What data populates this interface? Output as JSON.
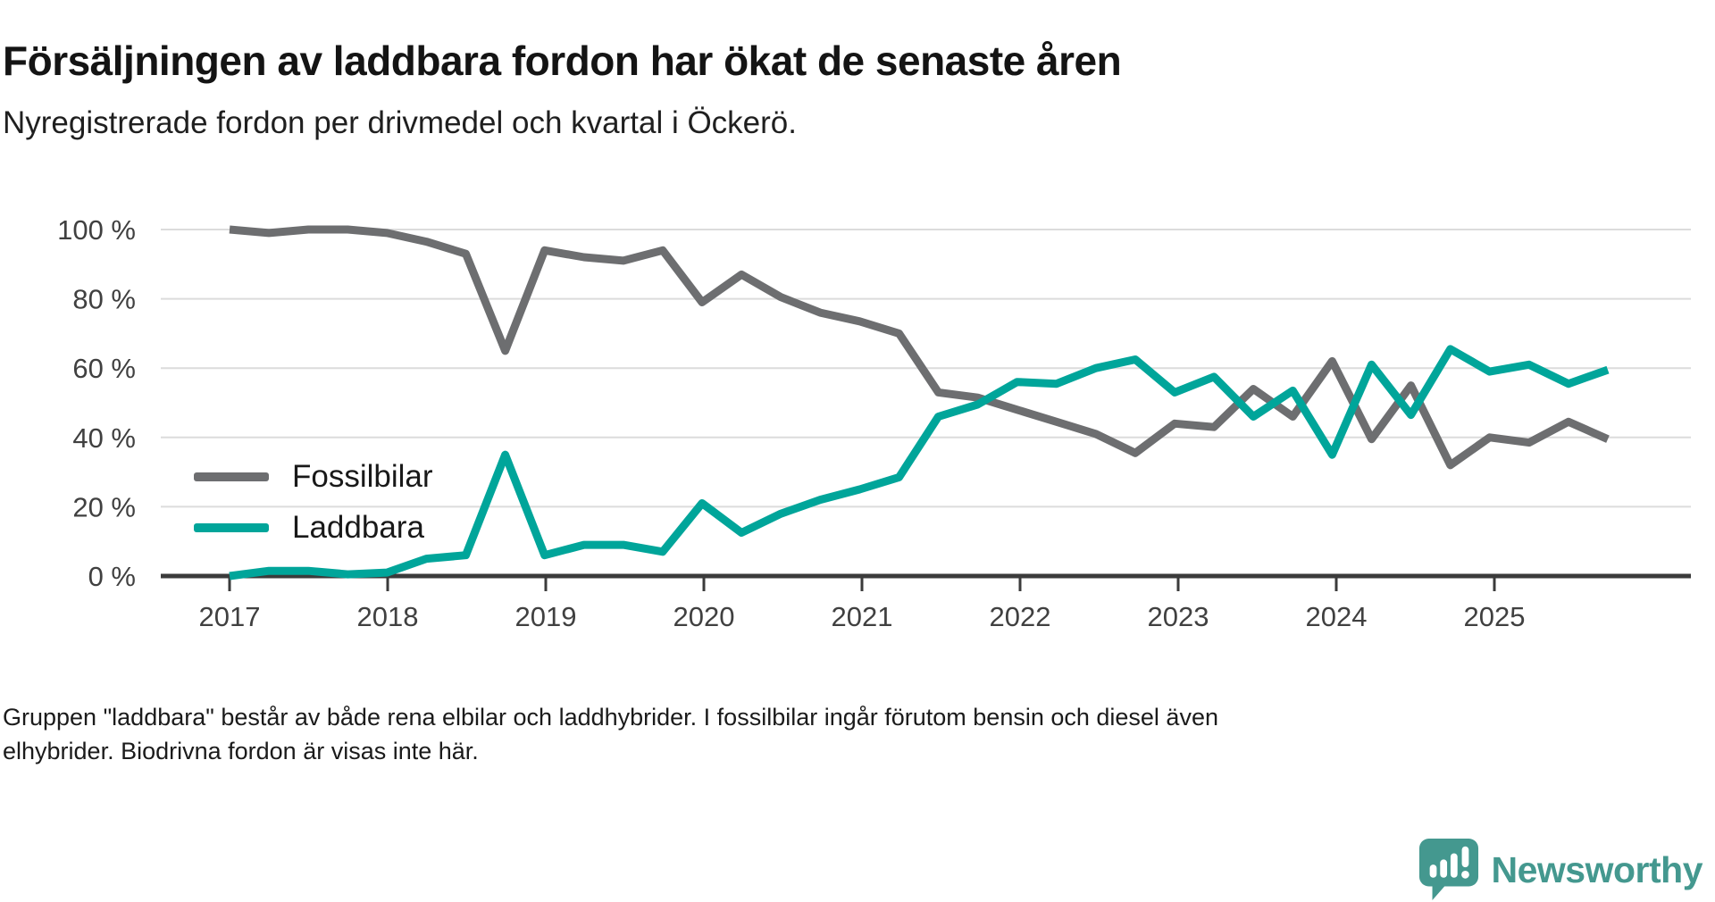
{
  "header": {
    "title": "Försäljningen av laddbara fordon har ökat de senaste åren",
    "subtitle": "Nyregistrerade fordon per drivmedel och kvartal i Öckerö."
  },
  "chart_data": {
    "type": "line",
    "title": "Försäljningen av laddbara fordon har ökat de senaste åren",
    "subtitle": "Nyregistrerade fordon per drivmedel och kvartal i Öckerö.",
    "x_unit": "quarter",
    "quarters": [
      "2017 Q1",
      "2017 Q2",
      "2017 Q3",
      "2017 Q4",
      "2018 Q1",
      "2018 Q2",
      "2018 Q3",
      "2018 Q4",
      "2019 Q1",
      "2019 Q2",
      "2019 Q3",
      "2019 Q4",
      "2020 Q1",
      "2020 Q2",
      "2020 Q3",
      "2020 Q4",
      "2021 Q1",
      "2021 Q2",
      "2021 Q3",
      "2021 Q4",
      "2022 Q1",
      "2022 Q2",
      "2022 Q3",
      "2022 Q4",
      "2023 Q1",
      "2023 Q2",
      "2023 Q3",
      "2023 Q4",
      "2024 Q1",
      "2024 Q2",
      "2024 Q3",
      "2024 Q4",
      "2025 Q1",
      "2025 Q2",
      "2025 Q3",
      "2025 Q4"
    ],
    "year_ticks": [
      "2017",
      "2018",
      "2019",
      "2020",
      "2021",
      "2022",
      "2023",
      "2024",
      "2025"
    ],
    "y_tick_labels": [
      "0 %",
      "20 %",
      "40 %",
      "60 %",
      "80 %",
      "100 %"
    ],
    "ylim": [
      0,
      100
    ],
    "grid": true,
    "legend_position": "inside-bottom-left",
    "series": [
      {
        "name": "Fossilbilar",
        "color": "#6d6e70",
        "values": [
          100,
          99,
          100,
          100,
          99,
          96.5,
          93,
          65,
          94,
          92,
          91,
          94,
          79,
          87,
          80.5,
          76,
          73.5,
          70,
          53,
          51.5,
          48,
          44.5,
          41,
          35.5,
          44,
          43,
          54,
          46,
          62,
          39.5,
          55,
          32,
          40,
          38.5,
          44.5,
          39.5
        ]
      },
      {
        "name": "Laddbara",
        "color": "#00a59a",
        "values": [
          0,
          1.5,
          1.5,
          0.5,
          1,
          5,
          6,
          35,
          6,
          9,
          9,
          7,
          21,
          12.5,
          18,
          22,
          25,
          28.5,
          46,
          49.5,
          56,
          55.5,
          60,
          62.5,
          53,
          57.5,
          46,
          53.5,
          35,
          61,
          46.5,
          65.5,
          59,
          61,
          55.5,
          59.5
        ]
      }
    ],
    "axis_color": "#3b3b3b",
    "gridline_color": "#dcdcdc",
    "tick_label_color": "#404040"
  },
  "footnote": {
    "text": "Gruppen \"laddbara\" består av både rena elbilar och laddhybrider. I fossilbilar ingår förutom bensin och diesel även elhybrider. Biodrivna fordon är visas inte här."
  },
  "logo": {
    "text": "Newsworthy",
    "brand_color": "#44988f",
    "icon": "speech-bubble-bar-chart-icon"
  }
}
